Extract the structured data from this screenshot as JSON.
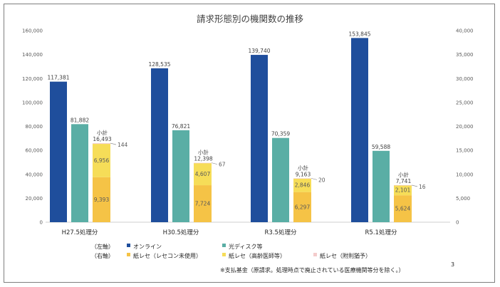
{
  "page_number": "3",
  "note": "※支払基金（原請求。処理時点で廃止されている医療機関等分を除く。）",
  "legend": {
    "left_axis_tag": "（左軸）",
    "right_axis_tag": "（右軸）",
    "items": [
      {
        "label": "オンライン",
        "color": "#1f4e9c"
      },
      {
        "label": "光ディスク等",
        "color": "#5aaea5"
      },
      {
        "label": "紙レセ（レセコン未使用）",
        "color": "#f5c346"
      },
      {
        "label": "紙レセ（高齢医師等）",
        "color": "#f6dd58"
      },
      {
        "label": "紙レセ（附則猶予）",
        "color": "#f4cccc"
      }
    ]
  },
  "chart_data": {
    "type": "bar",
    "title": "請求形態別の機関数の推移",
    "categories": [
      "H27.5処理分",
      "H30.5処理分",
      "R3.5処理分",
      "R5.1処理分"
    ],
    "left_axis": {
      "ylim": [
        0,
        160000
      ],
      "ticks": [
        "0",
        "20,000",
        "40,000",
        "60,000",
        "80,000",
        "100,000",
        "120,000",
        "140,000",
        "160,000"
      ]
    },
    "right_axis": {
      "ylim": [
        0,
        40000
      ],
      "ticks": [
        "0",
        "5,000",
        "10,000",
        "15,000",
        "20,000",
        "25,000",
        "30,000",
        "35,000",
        "40,000"
      ]
    },
    "subtotal_label": "小計",
    "series": [
      {
        "name": "オンライン",
        "axis": "left",
        "color": "#1f4e9c",
        "values": [
          117381,
          128535,
          139740,
          153845
        ],
        "labels": [
          "117,381",
          "128,535",
          "139,740",
          "153,845"
        ]
      },
      {
        "name": "光ディスク等",
        "axis": "left",
        "color": "#5aaea5",
        "values": [
          81882,
          76821,
          70359,
          59588
        ],
        "labels": [
          "81,882",
          "76,821",
          "70,359",
          "59,588"
        ]
      },
      {
        "name": "紙レセ（レセコン未使用）",
        "axis": "right",
        "color": "#f5c346",
        "stack": "paper",
        "values": [
          9393,
          7724,
          6297,
          5624
        ],
        "labels": [
          "9,393",
          "7,724",
          "6,297",
          "5,624"
        ]
      },
      {
        "name": "紙レセ（高齢医師等）",
        "axis": "right",
        "color": "#f6dd58",
        "stack": "paper",
        "values": [
          6956,
          4607,
          2846,
          2101
        ],
        "labels": [
          "6,956",
          "4,607",
          "2,846",
          "2,101"
        ]
      },
      {
        "name": "紙レセ（附則猶予）",
        "axis": "right",
        "color": "#f4cccc",
        "stack": "paper",
        "values": [
          144,
          67,
          20,
          16
        ],
        "labels": [
          "144",
          "67",
          "20",
          "16"
        ]
      }
    ],
    "subtotals": {
      "values": [
        16493,
        12398,
        9163,
        7741
      ],
      "labels": [
        "16,493",
        "12,398",
        "9,163",
        "7,741"
      ]
    },
    "grid": false,
    "legend_position": "bottom"
  }
}
